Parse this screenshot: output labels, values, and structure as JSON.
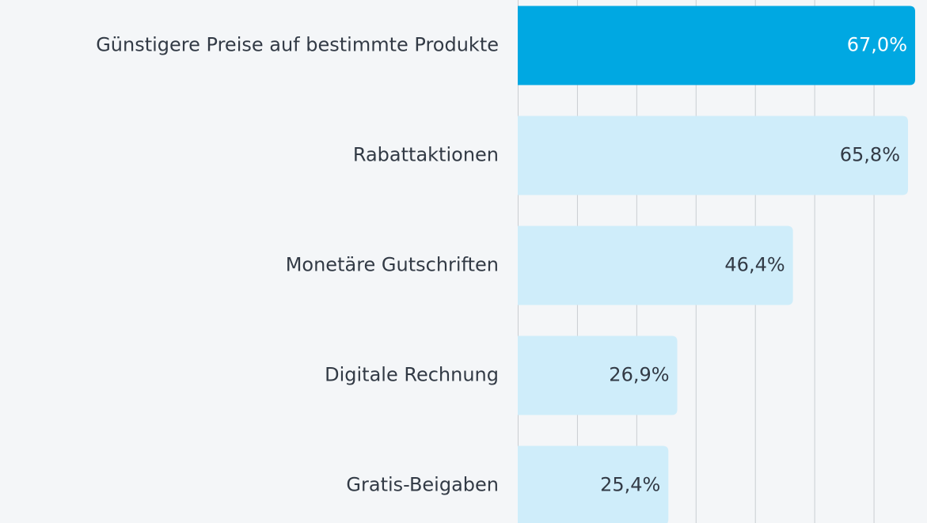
{
  "chart_data": {
    "type": "barh",
    "categories": [
      "Günstigere Preise auf bestimmte Produkte",
      "Rabattaktionen",
      "Monetäre Gutschriften",
      "Digitale Rechnung",
      "Gratis-Beigaben"
    ],
    "values": [
      67.0,
      65.8,
      46.4,
      26.9,
      25.4
    ],
    "value_labels": [
      "67,0%",
      "65,8%",
      "46,4%",
      "26,9%",
      "25,4%"
    ],
    "colors": [
      "#00a8e2",
      "#cfedfa",
      "#cfedfa",
      "#cfedfa",
      "#cfedfa"
    ],
    "xlim": [
      0,
      69
    ],
    "xticks": [
      0,
      10,
      20,
      30,
      40,
      50,
      60
    ],
    "grid": true
  }
}
